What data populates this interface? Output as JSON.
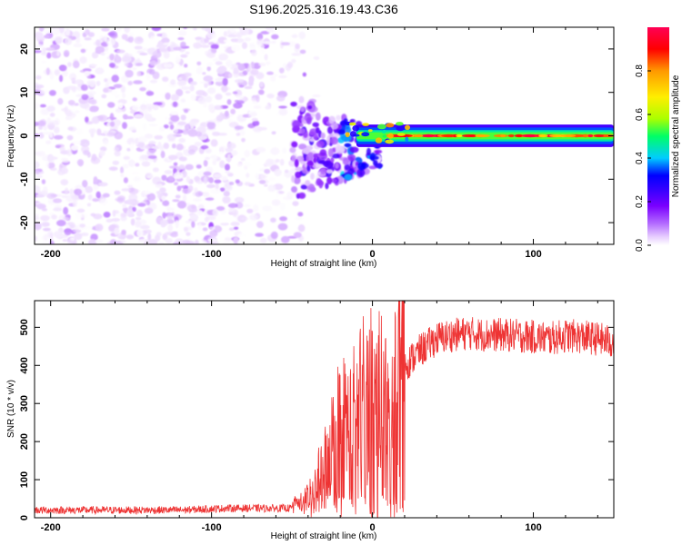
{
  "title": "S196.2025.316.19.43.C36",
  "chart_data": [
    {
      "type": "heatmap",
      "panel": "spectrogram",
      "xlabel": "Height of straight line (km)",
      "ylabel": "Frequency (Hz)",
      "xlim": [
        -210,
        150
      ],
      "ylim": [
        -25,
        25
      ],
      "xticks": [
        -200,
        -100,
        0,
        100
      ],
      "yticks": [
        -20,
        -10,
        0,
        10,
        20
      ],
      "colorbar": {
        "label": "Normalized spectral amplitude",
        "range": [
          0,
          1
        ],
        "ticks": [
          0.0,
          0.2,
          0.4,
          0.6,
          0.8
        ],
        "colormap": [
          "#ffffff",
          "#e6ccff",
          "#b36bff",
          "#7a00ff",
          "#3a00ff",
          "#0000ff",
          "#00ccff",
          "#00ff66",
          "#aaff00",
          "#ffee00",
          "#ff9900",
          "#ff0000",
          "#ff0055"
        ]
      },
      "regions": [
        {
          "name": "noise",
          "x_range": [
            -210,
            -50
          ],
          "freq_range": [
            -25,
            25
          ],
          "amplitude_range": [
            0.0,
            0.12
          ]
        },
        {
          "name": "transition",
          "x_range": [
            -50,
            5
          ],
          "freq_range": [
            -15,
            8
          ],
          "amplitude_range": [
            0.05,
            0.45
          ]
        },
        {
          "name": "signal-band",
          "x_range": [
            5,
            150
          ],
          "center_freq": 0,
          "half_width_hz": 1.5,
          "peak_amplitude": 1.0
        }
      ]
    },
    {
      "type": "line",
      "panel": "snr",
      "xlabel": "Height of straight line (km)",
      "ylabel": "SNR (10 * v/v)",
      "xlim": [
        -210,
        150
      ],
      "ylim": [
        0,
        570
      ],
      "xticks": [
        -200,
        -100,
        0,
        100
      ],
      "yticks": [
        0,
        100,
        200,
        300,
        400,
        500
      ],
      "color": "#ee3333",
      "series": [
        {
          "name": "SNR",
          "x": [
            -210,
            -180,
            -150,
            -120,
            -90,
            -60,
            -50,
            -40,
            -35,
            -30,
            -25,
            -20,
            -15,
            -10,
            -5,
            0,
            5,
            10,
            15,
            20,
            30,
            40,
            50,
            60,
            70,
            80,
            90,
            100,
            110,
            120,
            130,
            140,
            150
          ],
          "values": [
            20,
            20,
            20,
            20,
            25,
            25,
            25,
            55,
            90,
            140,
            200,
            260,
            240,
            280,
            310,
            320,
            330,
            300,
            360,
            400,
            440,
            470,
            480,
            485,
            480,
            480,
            478,
            475,
            470,
            478,
            475,
            470,
            460
          ]
        }
      ]
    }
  ]
}
